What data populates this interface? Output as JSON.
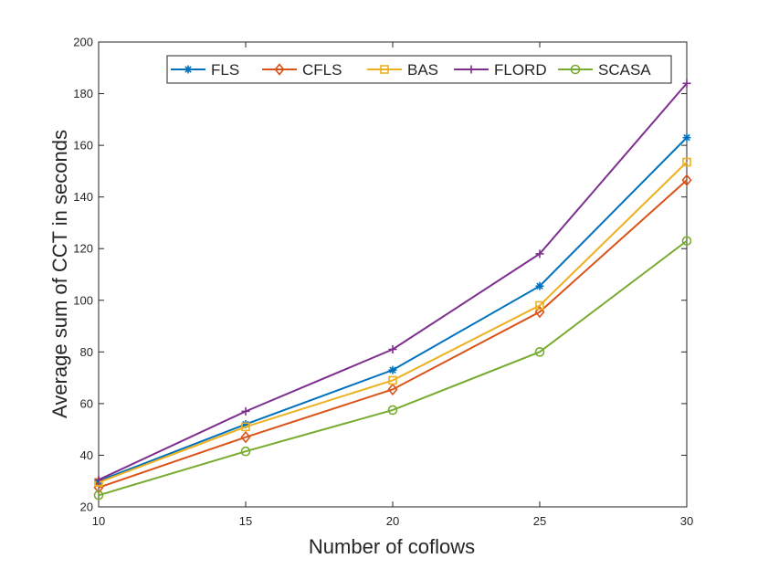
{
  "chart_data": {
    "type": "line",
    "title": "",
    "xlabel": "Number of coflows",
    "ylabel": "Average sum of CCT in seconds",
    "x": [
      10,
      15,
      20,
      25,
      30
    ],
    "xlim": [
      10,
      30
    ],
    "ylim": [
      20,
      200
    ],
    "xticks": [
      10,
      15,
      20,
      25,
      30
    ],
    "yticks": [
      20,
      40,
      60,
      80,
      100,
      120,
      140,
      160,
      180,
      200
    ],
    "grid": false,
    "legend_position": "top-right",
    "legend_orientation": "horizontal",
    "series": [
      {
        "name": "FLS",
        "color": "#0072BD",
        "marker": "asterisk",
        "values": [
          30,
          52,
          73,
          105.5,
          163
        ]
      },
      {
        "name": "CFLS",
        "color": "#D95319",
        "marker": "diamond",
        "values": [
          27.5,
          47,
          65.5,
          95.5,
          146.5
        ]
      },
      {
        "name": "BAS",
        "color": "#EDB120",
        "marker": "square",
        "values": [
          29.5,
          51,
          69,
          98,
          153.5
        ]
      },
      {
        "name": "FLORD",
        "color": "#7E2F8E",
        "marker": "plus",
        "values": [
          30.5,
          57,
          81,
          118,
          184
        ]
      },
      {
        "name": "SCASA",
        "color": "#77AC30",
        "marker": "circle",
        "values": [
          24.5,
          41.5,
          57.5,
          80,
          123
        ]
      }
    ]
  }
}
